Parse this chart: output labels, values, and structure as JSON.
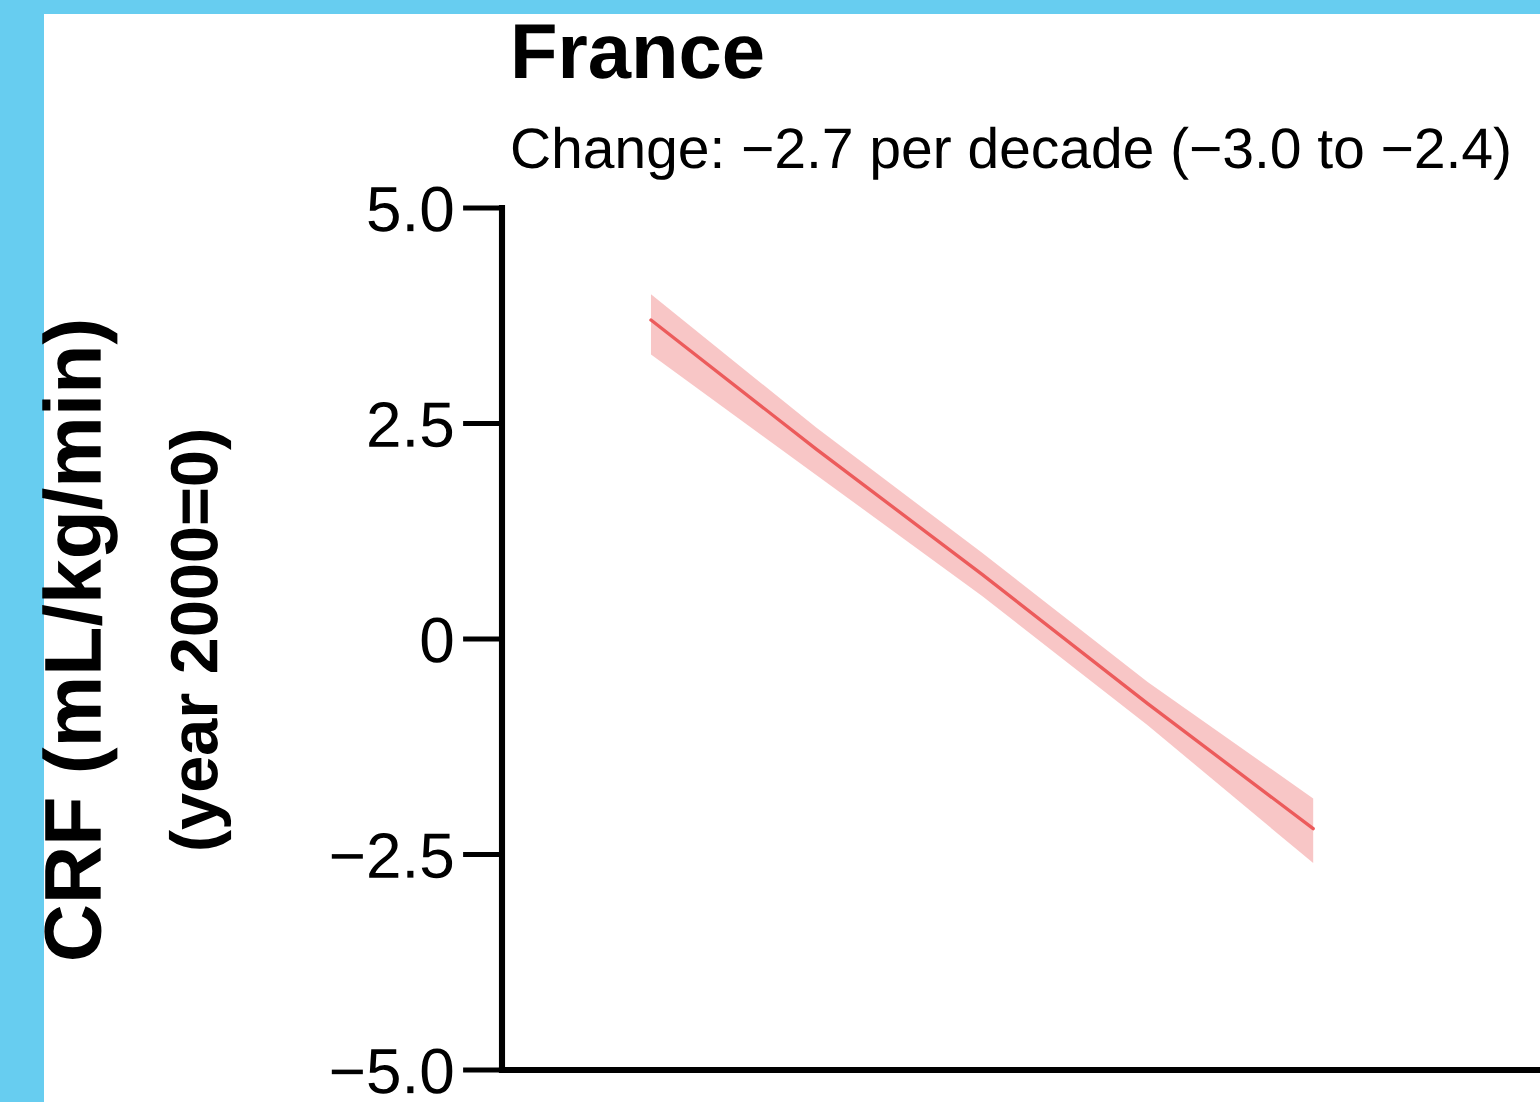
{
  "chart_data": {
    "type": "line",
    "title": "France",
    "subtitle": "Change: −2.7 per decade (−3.0 to −2.4)",
    "ylabel": "CRF (mL/kg/min)\n(year 2000=0)",
    "categories": [
      null,
      null,
      null,
      null,
      null
    ],
    "series": [
      {
        "color": "#ec5b5b",
        "values": [
          3.7,
          2.2,
          0.75,
          -0.75,
          -2.2
        ],
        "lower": [
          3.3,
          1.9,
          0.5,
          -1.0,
          -2.6
        ],
        "upper": [
          4.0,
          2.45,
          1.0,
          -0.5,
          -1.85
        ]
      }
    ],
    "ylim": [
      -5.0,
      5.0
    ],
    "yticks": [
      {
        "value": 5.0,
        "label": "5.0"
      },
      2.5,
      0,
      {
        "value": -2.5,
        "label": "−2.5"
      },
      {
        "value": -5.0,
        "label": "−5.0"
      }
    ],
    "tick_labels": "y",
    "line_style": "solid"
  }
}
